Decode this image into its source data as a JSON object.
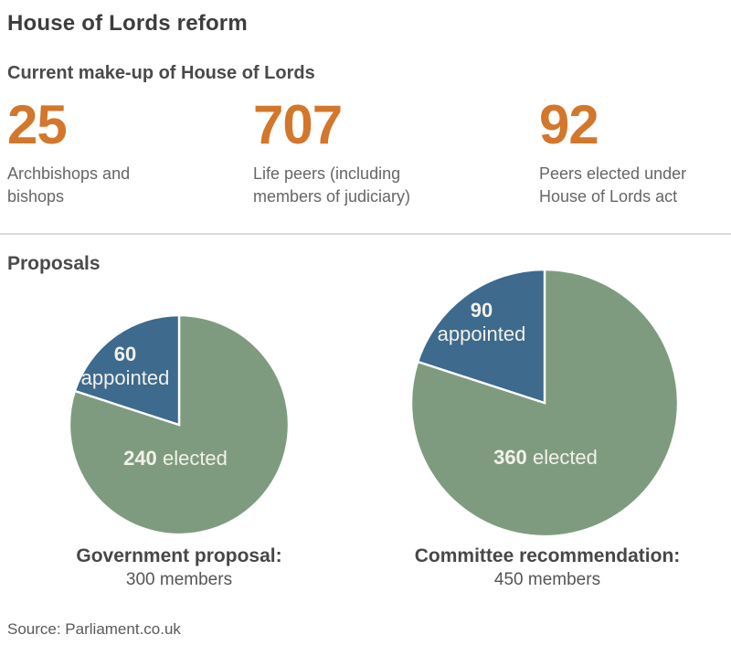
{
  "title": "House of Lords reform",
  "sections": {
    "current_heading": "Current make-up of House of Lords",
    "proposals_heading": "Proposals"
  },
  "stats": [
    {
      "value": "25",
      "label": "Archbishops and bishops"
    },
    {
      "value": "707",
      "label": "Life peers (including members of judiciary)"
    },
    {
      "value": "92",
      "label": "Peers elected under House of Lords act"
    }
  ],
  "source": "Source: Parliament.co.uk",
  "colors": {
    "accent_orange": "#d2772b",
    "pie_blue": "#3d6a8d",
    "pie_green": "#7f9b7f",
    "pie_label_text": "#f2f1e9",
    "slice_stroke": "#ffffff"
  },
  "chart_data": [
    {
      "type": "pie",
      "title": "Government proposal:",
      "subtitle": "300 members",
      "total": 300,
      "slices": [
        {
          "label": "elected",
          "value": 240,
          "color_key": "pie_green"
        },
        {
          "label": "appointed",
          "value": 60,
          "color_key": "pie_blue"
        }
      ],
      "start_angle_deg": 0,
      "legend_position": "inside",
      "note": "slice areas proportional to membership; pie radius scaled so area is proportional to total members"
    },
    {
      "type": "pie",
      "title": "Committee recommendation:",
      "subtitle": "450 members",
      "total": 450,
      "slices": [
        {
          "label": "elected",
          "value": 360,
          "color_key": "pie_green"
        },
        {
          "label": "appointed",
          "value": 90,
          "color_key": "pie_blue"
        }
      ],
      "start_angle_deg": 0,
      "legend_position": "inside",
      "note": "slice areas proportional to membership; pie radius scaled so area is proportional to total members"
    }
  ]
}
